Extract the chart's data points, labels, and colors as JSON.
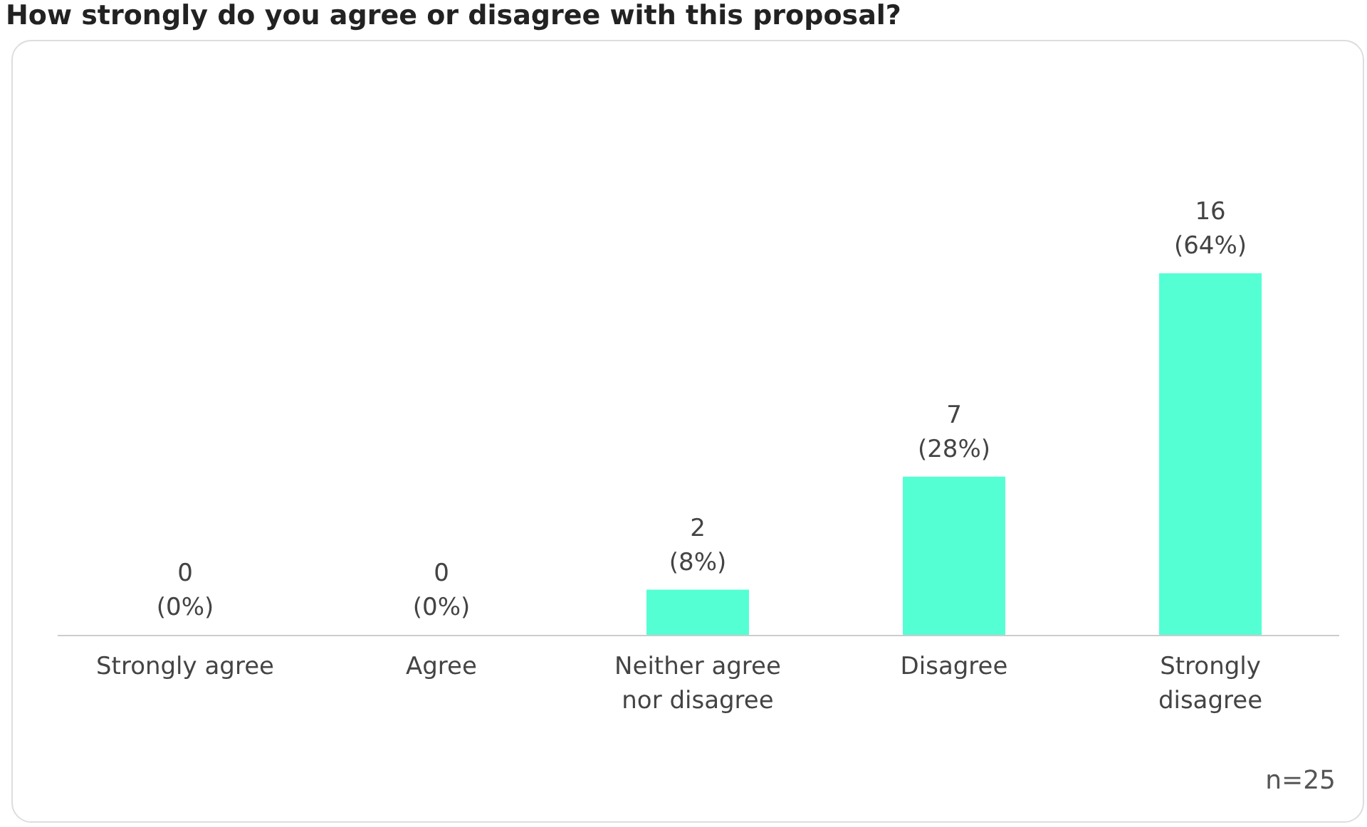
{
  "chart_data": {
    "type": "bar",
    "title": "How strongly do you agree or disagree with this proposal?",
    "categories": [
      "Strongly agree",
      "Agree",
      "Neither agree nor disagree",
      "Disagree",
      "Strongly disagree"
    ],
    "values": [
      0,
      0,
      2,
      7,
      16
    ],
    "value_labels": [
      "0\n(0%)",
      "0\n(0%)",
      "2\n(8%)",
      "7\n(28%)",
      "16\n(64%)"
    ],
    "color": "#55ffd4",
    "annotations": [
      "n=25"
    ]
  }
}
